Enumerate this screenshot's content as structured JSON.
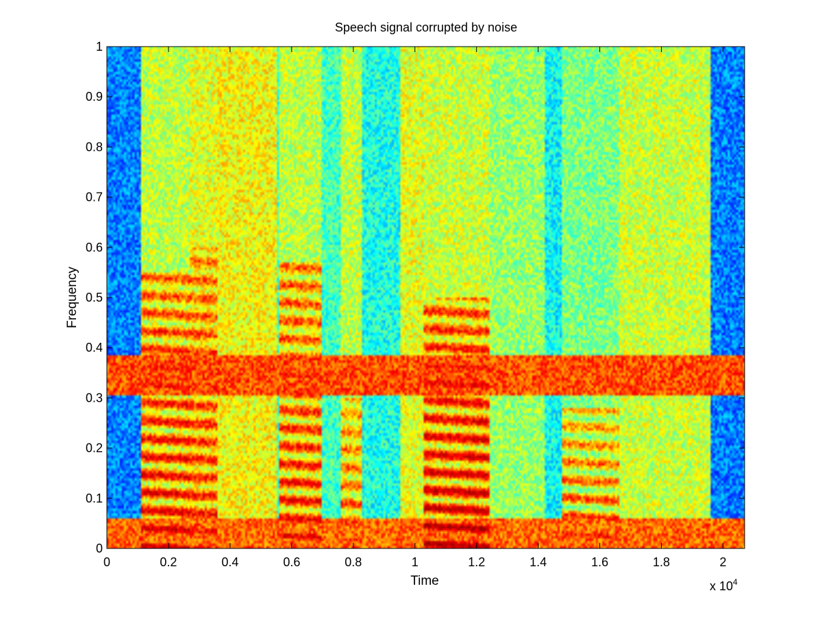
{
  "chart_data": {
    "type": "heatmap",
    "title": "Speech signal corrupted by noise",
    "xlabel": "Time",
    "ylabel": "Frequency",
    "x_multiplier": "x 10",
    "x_multiplier_exponent": "4",
    "xlim": [
      0,
      2.07
    ],
    "ylim": [
      0,
      1
    ],
    "xticks": [
      0,
      0.2,
      0.4,
      0.6,
      0.8,
      1,
      1.2,
      1.4,
      1.6,
      1.8,
      2
    ],
    "xtick_labels": [
      "0",
      "0.2",
      "0.4",
      "0.6",
      "0.8",
      "1",
      "1.2",
      "1.4",
      "1.6",
      "1.8",
      "2"
    ],
    "yticks": [
      0,
      0.1,
      0.2,
      0.3,
      0.4,
      0.5,
      0.6,
      0.7,
      0.8,
      0.9,
      1
    ],
    "ytick_labels": [
      "0",
      "0.1",
      "0.2",
      "0.3",
      "0.4",
      "0.5",
      "0.6",
      "0.7",
      "0.8",
      "0.9",
      "1"
    ],
    "colormap": "jet",
    "colormap_stops": [
      "#00008f",
      "#0000ff",
      "#00ffff",
      "#ffff00",
      "#ff0000",
      "#800000"
    ],
    "noise_bands": [
      {
        "freq_range": [
          0,
          0.06
        ],
        "level": 0.72
      },
      {
        "freq_range": [
          0.305,
          0.385
        ],
        "level": 0.74
      }
    ],
    "silence_segments": [
      {
        "time_range": [
          0,
          0.11
        ],
        "level": 0.3
      },
      {
        "time_range": [
          1.96,
          2.07
        ],
        "level": 0.3
      }
    ],
    "time_segments": [
      {
        "time_range": [
          0.11,
          0.27
        ],
        "level": 0.55,
        "harmonic_level": 0.88,
        "harmonic_max_freq": 0.55
      },
      {
        "time_range": [
          0.27,
          0.36
        ],
        "level": 0.58,
        "harmonic_level": 0.82,
        "harmonic_max_freq": 0.6
      },
      {
        "time_range": [
          0.36,
          0.55
        ],
        "level": 0.6,
        "harmonic_level": 0.0,
        "harmonic_max_freq": 0.0
      },
      {
        "time_range": [
          0.56,
          0.7
        ],
        "level": 0.55,
        "harmonic_level": 0.85,
        "harmonic_max_freq": 0.57
      },
      {
        "time_range": [
          0.7,
          0.76
        ],
        "level": 0.45,
        "harmonic_level": 0.0,
        "harmonic_max_freq": 0.0
      },
      {
        "time_range": [
          0.76,
          0.83
        ],
        "level": 0.55,
        "harmonic_level": 0.78,
        "harmonic_max_freq": 0.3
      },
      {
        "time_range": [
          0.83,
          0.95
        ],
        "level": 0.42,
        "harmonic_level": 0.0,
        "harmonic_max_freq": 0.0
      },
      {
        "time_range": [
          0.95,
          1.03
        ],
        "level": 0.58,
        "harmonic_level": 0.0,
        "harmonic_max_freq": 0.0
      },
      {
        "time_range": [
          1.03,
          1.24
        ],
        "level": 0.56,
        "harmonic_level": 0.92,
        "harmonic_max_freq": 0.5
      },
      {
        "time_range": [
          1.24,
          1.42
        ],
        "level": 0.52,
        "harmonic_level": 0.0,
        "harmonic_max_freq": 0.0
      },
      {
        "time_range": [
          1.42,
          1.48
        ],
        "level": 0.4,
        "harmonic_level": 0.0,
        "harmonic_max_freq": 0.0
      },
      {
        "time_range": [
          1.48,
          1.66
        ],
        "level": 0.5,
        "harmonic_level": 0.8,
        "harmonic_max_freq": 0.28
      },
      {
        "time_range": [
          1.66,
          1.96
        ],
        "level": 0.56,
        "harmonic_level": 0.0,
        "harmonic_max_freq": 0.0
      }
    ]
  }
}
